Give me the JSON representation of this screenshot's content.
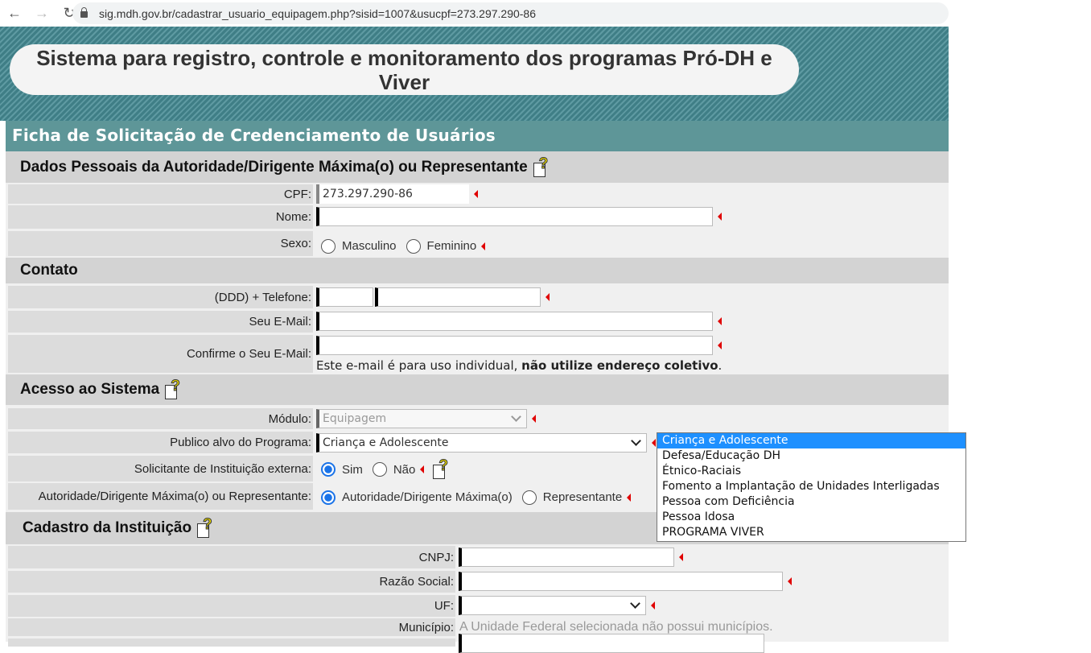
{
  "browser": {
    "url": "sig.mdh.gov.br/cadastrar_usuario_equipagem.php?sisid=1007&usucpf=273.297.290-86",
    "back_icon": "arrow-left-icon",
    "forward_icon": "arrow-right-icon",
    "reload_icon": "reload-icon",
    "lock_icon": "lock-icon"
  },
  "banner": {
    "title": "Sistema para registro, controle e monitoramento dos programas Pró-DH e Viver"
  },
  "form": {
    "title": "Ficha de Solicitação de Credenciamento de Usuários",
    "sections": {
      "personal": "Dados Pessoais da Autoridade/Dirigente Máxima(o) ou Representante",
      "contact": "Contato",
      "access": "Acesso ao Sistema",
      "institution": "Cadastro da Instituição"
    },
    "cpf": {
      "label": "CPF:",
      "value": "273.297.290-86"
    },
    "nome": {
      "label": "Nome:",
      "value": ""
    },
    "sexo": {
      "label": "Sexo:",
      "options": [
        "Masculino",
        "Feminino"
      ],
      "selected": null
    },
    "telefone": {
      "label": "(DDD) + Telefone:",
      "ddd": "",
      "numero": ""
    },
    "email": {
      "label": "Seu E-Mail:",
      "value": ""
    },
    "email_confirm": {
      "label": "Confirme o Seu E-Mail:",
      "value": "",
      "note_normal": "Este e-mail é para uso individual, ",
      "note_bold": "não utilize endereço coletivo",
      "note_end": "."
    },
    "modulo": {
      "label": "Módulo:",
      "value": "Equipagem",
      "disabled": true
    },
    "publico": {
      "label": "Publico alvo do Programa:",
      "value": "Criança e Adolescente",
      "options": [
        "Criança e Adolescente",
        "Defesa/Educação DH",
        "Étnico-Raciais",
        "Fomento a Implantação de Unidades Interligadas",
        "Pessoa com Deficiência",
        "Pessoa Idosa",
        "PROGRAMA VIVER"
      ],
      "highlighted": "Criança e Adolescente"
    },
    "solicitante": {
      "label": "Solicitante de Instituição externa:",
      "options": [
        "Sim",
        "Não"
      ],
      "selected": "Sim"
    },
    "autoridade": {
      "label": "Autoridade/Dirigente Máxima(o) ou Representante:",
      "options": [
        "Autoridade/Dirigente Máxima(o)",
        "Representante"
      ],
      "selected": "Autoridade/Dirigente Máxima(o)"
    },
    "cnpj": {
      "label": "CNPJ:",
      "value": ""
    },
    "razao": {
      "label": "Razão Social:",
      "value": ""
    },
    "uf": {
      "label": "UF:",
      "value": ""
    },
    "municipio": {
      "label": "Município:",
      "value": "A Unidade Federal selecionada não possui municípios."
    }
  },
  "colors": {
    "header": "#5e9698",
    "required": "#e00000",
    "highlight": "#1e90ff"
  }
}
